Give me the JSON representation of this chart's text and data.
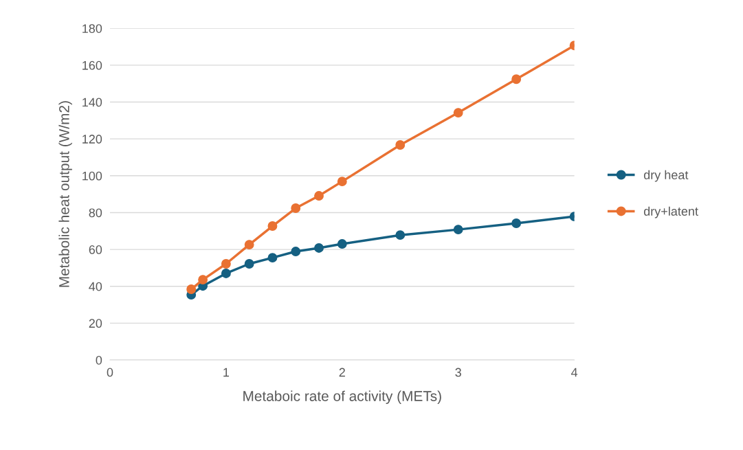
{
  "chart_data": {
    "type": "line",
    "xlabel": "Metaboic rate of activity (METs)",
    "ylabel": "Metabolic heat output (W/m2)",
    "x": [
      0.7,
      0.8,
      1.0,
      1.2,
      1.4,
      1.6,
      1.8,
      2.0,
      2.5,
      3.0,
      3.5,
      4.0
    ],
    "series": [
      {
        "name": "dry heat",
        "color": "#156082",
        "values": [
          35.4,
          40.2,
          47,
          52.2,
          55.5,
          58.9,
          60.8,
          63,
          67.8,
          70.8,
          74.2,
          77.9
        ]
      },
      {
        "name": "dry+latent",
        "color": "#e97132",
        "values": [
          38.4,
          43.6,
          52.2,
          62.6,
          72.7,
          82.4,
          89.1,
          96.9,
          116.7,
          134.2,
          152.4,
          170.7
        ]
      }
    ],
    "xlim": [
      0,
      4
    ],
    "xticks": [
      0,
      1,
      2,
      3,
      4
    ],
    "ylim": [
      0,
      180
    ],
    "yticks": [
      0,
      20,
      40,
      60,
      80,
      100,
      120,
      140,
      160,
      180
    ],
    "grid": "y",
    "legend": "right",
    "marker": "circle",
    "line_style": "solid"
  }
}
